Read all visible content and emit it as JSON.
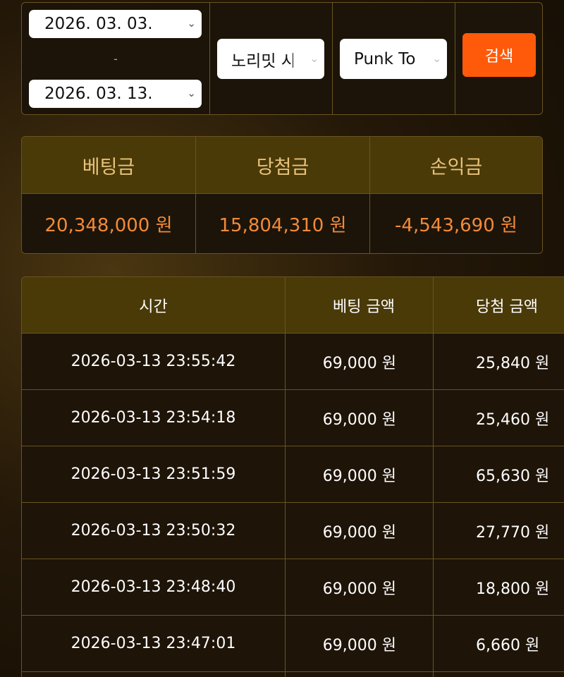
{
  "filter": {
    "start_date": "2026. 03. 03.",
    "separator": "-",
    "end_date": "2026. 03. 13.",
    "provider": "노리밋 시",
    "game": "Punk Toilet",
    "search_label": "검색"
  },
  "summary": {
    "headers": [
      "베팅금",
      "당첨금",
      "손익금"
    ],
    "values": [
      "20,348,000 원",
      "15,804,310 원",
      "-4,543,690 원"
    ],
    "value_color": "#f28a3a"
  },
  "table": {
    "headers": [
      "시간",
      "베팅 금액",
      "당첨 금액"
    ],
    "rows": [
      [
        "2026-03-13 23:55:42",
        "69,000 원",
        "25,840 원"
      ],
      [
        "2026-03-13 23:54:18",
        "69,000 원",
        "25,460 원"
      ],
      [
        "2026-03-13 23:51:59",
        "69,000 원",
        "65,630 원"
      ],
      [
        "2026-03-13 23:50:32",
        "69,000 원",
        "27,770 원"
      ],
      [
        "2026-03-13 23:48:40",
        "69,000 원",
        "18,800 원"
      ],
      [
        "2026-03-13 23:47:01",
        "69,000 원",
        "6,660 원"
      ]
    ]
  }
}
